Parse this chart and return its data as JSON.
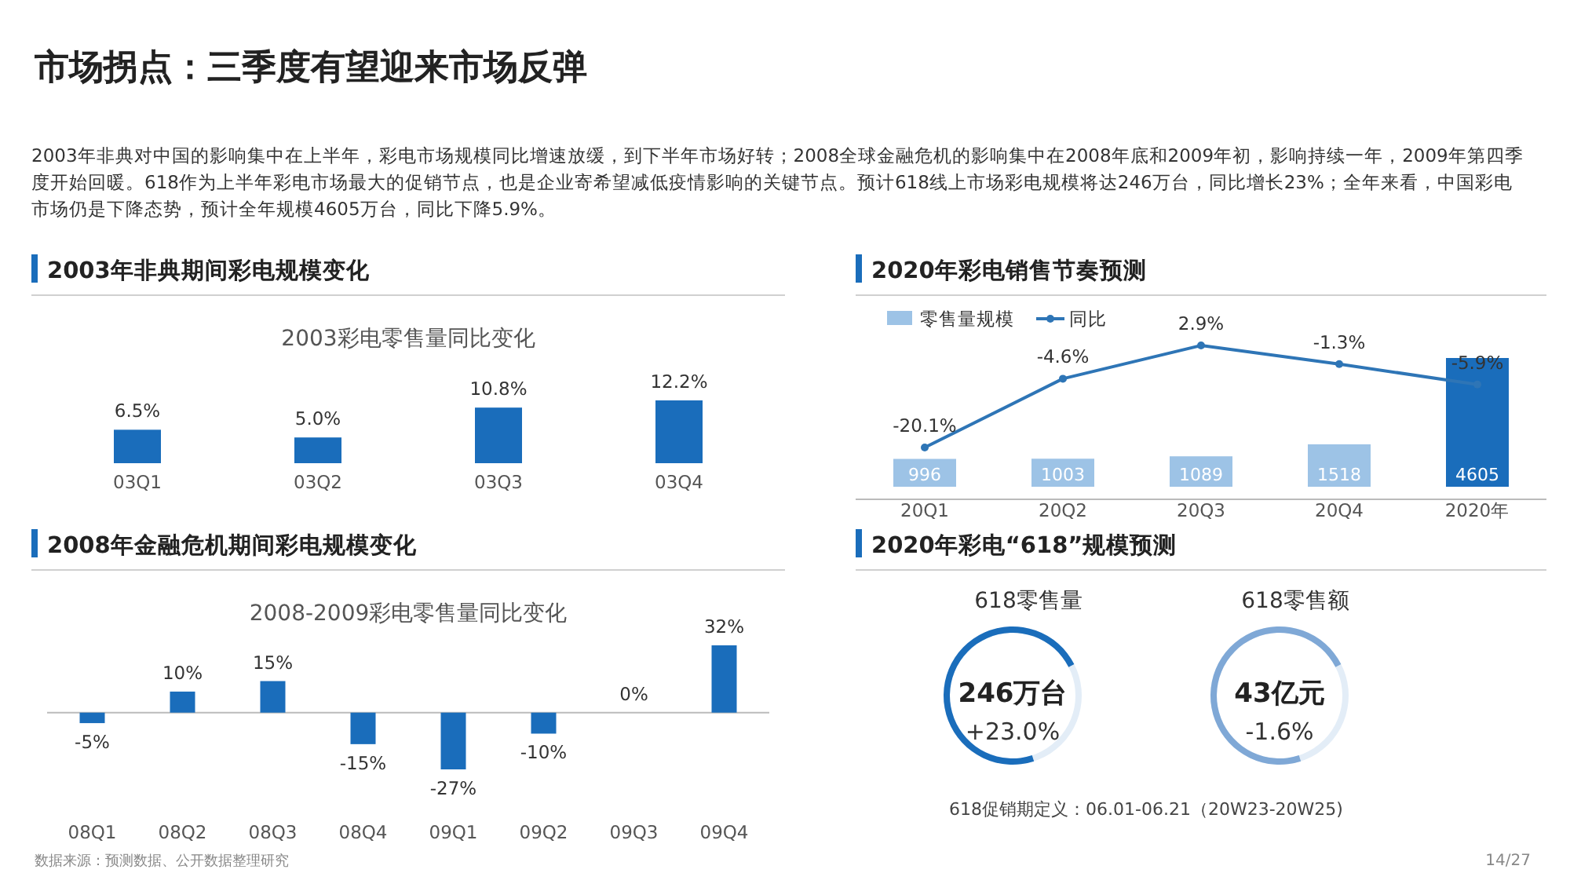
{
  "chart_data": [
    {
      "type": "other",
      "title": "市场拐点：三季度有望迎来市场反弹",
      "annotations": [
        "2003年非典对中国的影响集中在上半年，彩电市场规模同比增速放缓，到下半年市场好转；2008全球金融危机的影响集中在2008年底和2009年初，影响持续一年，2009年第四季度开始回暖。618作为上半年彩电市场最大的促销节点，也是企业寄希望减低疫情影响的关键节点。预计618线上市场彩电规模将达246万台，同比增长23%；全年来看，中国彩电市场仍是下降态势，预计全年规模4605万台，同比下降5.9%。",
        "数据来源：预测数据、公开数据整理研究",
        "14/27"
      ]
    },
    {
      "type": "bar",
      "title": "2003年非典期间彩电规模变化",
      "subtitle": "2003彩电零售量同比变化",
      "categories": [
        "03Q1",
        "03Q2",
        "03Q3",
        "03Q4"
      ],
      "values": [
        6.5,
        5.0,
        10.8,
        12.2
      ],
      "value_labels": [
        "6.5%",
        "5.0%",
        "10.8%",
        "12.2%"
      ],
      "color": "#1a6dbb"
    },
    {
      "type": "bar",
      "title": "2008年金融危机期间彩电规模变化",
      "subtitle": "2008-2009彩电零售量同比变化",
      "categories": [
        "08Q1",
        "08Q2",
        "08Q3",
        "08Q4",
        "09Q1",
        "09Q2",
        "09Q3",
        "09Q4"
      ],
      "values": [
        -5,
        10,
        15,
        -15,
        -27,
        -10,
        0,
        32
      ],
      "value_labels": [
        "-5%",
        "10%",
        "15%",
        "-15%",
        "-27%",
        "-10%",
        "0%",
        "32%"
      ],
      "color": "#1a6dbb"
    },
    {
      "type": "bar",
      "title": "2020年彩电销售节奏预测",
      "categories": [
        "20Q1",
        "20Q2",
        "20Q3",
        "20Q4",
        "2020年"
      ],
      "legend": "top left",
      "marker": "circle",
      "series": [
        {
          "name": "零售量规模",
          "type": "bar",
          "colors": [
            "#9dc3e6",
            "#9dc3e6",
            "#9dc3e6",
            "#9dc3e6",
            "#1a6dbb"
          ],
          "values": [
            996,
            1003,
            1089,
            1518,
            4605
          ],
          "value_labels": [
            "996",
            "1003",
            "1089",
            "1518",
            "4605"
          ]
        },
        {
          "name": "同比",
          "type": "line",
          "axis": "y2",
          "color": "#2e75b6",
          "values": [
            -20.1,
            -4.6,
            2.9,
            -1.3,
            -5.9
          ],
          "value_labels": [
            "-20.1%",
            "-4.6%",
            "2.9%",
            "-1.3%",
            "-5.9%"
          ]
        }
      ]
    },
    {
      "type": "other",
      "title": "2020年彩电“618”规模预测",
      "annotations": [
        "618零售量",
        "246万台",
        "+23.0%",
        "618零售额",
        "43亿元",
        "-1.6%",
        "618促销期定义：06.01-06.21（20W23-20W25)"
      ]
    }
  ]
}
